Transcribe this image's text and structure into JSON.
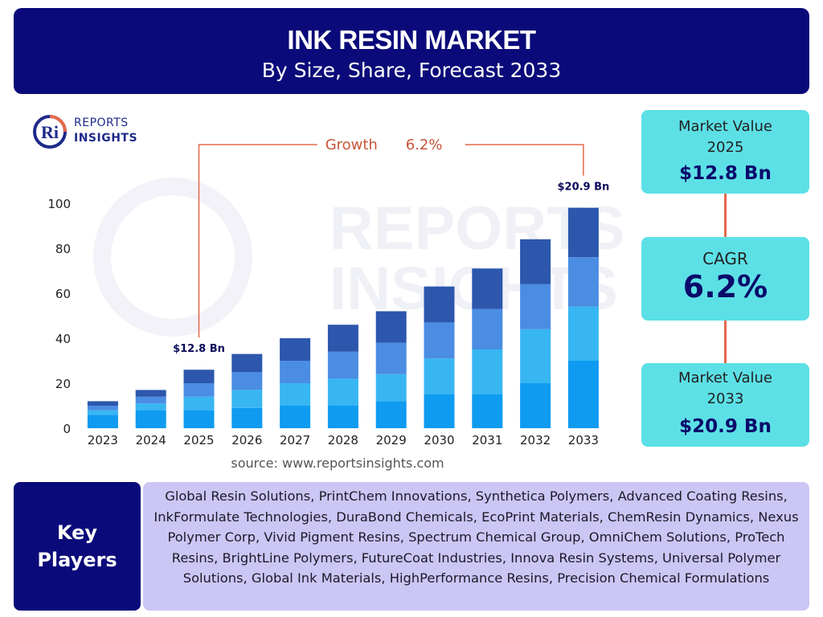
{
  "header": {
    "title": "INK RESIN MARKET",
    "subtitle": "By Size, Share, Forecast 2033"
  },
  "logo": {
    "mark_text": "Ri",
    "line1": "REPORTS",
    "line2": "INSIGHTS"
  },
  "watermark": {
    "line1": "REPORTS",
    "line2": "INSIGHTS"
  },
  "chart_data": {
    "type": "bar",
    "stacked": true,
    "categories": [
      "2023",
      "2024",
      "2025",
      "2026",
      "2027",
      "2028",
      "2029",
      "2030",
      "2031",
      "2032",
      "2033"
    ],
    "series": [
      {
        "values": [
          6,
          8,
          8,
          9,
          10,
          10,
          12,
          15,
          15,
          20,
          30
        ],
        "color": "#0e9bf0"
      },
      {
        "values": [
          2,
          3,
          6,
          8,
          10,
          12,
          12,
          16,
          20,
          24,
          24
        ],
        "color": "#38b6f2"
      },
      {
        "values": [
          2,
          3,
          6,
          8,
          10,
          12,
          14,
          16,
          18,
          20,
          22
        ],
        "color": "#4a8de3"
      },
      {
        "values": [
          2,
          3,
          6,
          8,
          10,
          12,
          14,
          16,
          18,
          20,
          22
        ],
        "color": "#2c57ad"
      }
    ],
    "ylim": [
      0,
      100
    ],
    "yticks": [
      0,
      20,
      40,
      60,
      80,
      100
    ],
    "annotations": [
      {
        "category": "2025",
        "text": "$12.8 Bn"
      },
      {
        "category": "2033",
        "text": "$20.9 Bn"
      }
    ],
    "growth_label": "Growth",
    "growth_value": "6.2%",
    "grid": false,
    "legend": "none",
    "accent_color": "#e56a4a"
  },
  "source": "source: www.reportsinsights.com",
  "cards": {
    "start": {
      "label_line1": "Market Value",
      "label_line2": "2025",
      "value": "$12.8 Bn"
    },
    "cagr": {
      "label": "CAGR",
      "value": "6.2%"
    },
    "end": {
      "label_line1": "Market Value",
      "label_line2": "2033",
      "value": "$20.9 Bn"
    }
  },
  "key_players": {
    "label_line1": "Key",
    "label_line2": "Players",
    "list_text": "Global Resin Solutions, PrintChem Innovations, Synthetica Polymers, Advanced Coating Resins, InkFormulate Technologies, DuraBond Chemicals, EcoPrint Materials, ChemResin Dynamics, Nexus Polymer Corp, Vivid Pigment Resins, Spectrum Chemical Group, OmniChem Solutions, ProTech Resins, BrightLine Polymers, FutureCoat Industries, Innova Resin Systems, Universal Polymer Solutions, Global Ink Materials, HighPerformance Resins, Precision Chemical Formulations"
  },
  "colors": {
    "header_bg": "#0a0a7a",
    "card_bg": "#5ce0e6",
    "players_bg": "#ccc6f4"
  }
}
